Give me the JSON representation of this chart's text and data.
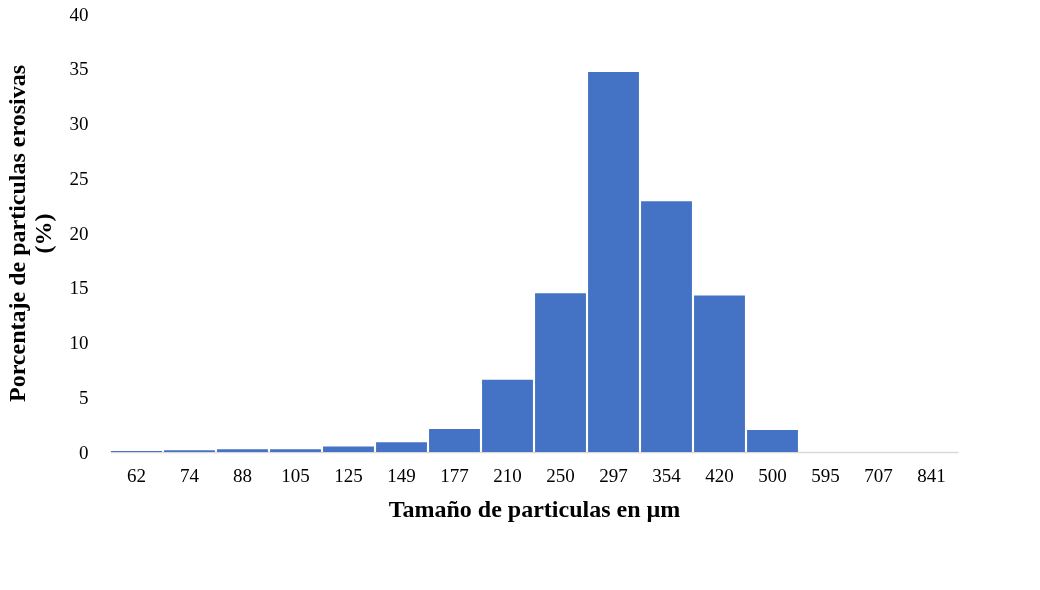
{
  "chart_data": {
    "type": "bar",
    "xlabel": "Tamaño de particulas en µm",
    "ylabel": "Porcentaje de particulas erosivas (%)",
    "categories": [
      "62",
      "74",
      "88",
      "105",
      "125",
      "149",
      "177",
      "210",
      "250",
      "297",
      "354",
      "420",
      "500",
      "595",
      "707",
      "841"
    ],
    "values": [
      0.1,
      0.15,
      0.25,
      0.25,
      0.5,
      0.9,
      2.1,
      6.6,
      14.5,
      34.7,
      22.9,
      14.3,
      2.0,
      0,
      0,
      0
    ],
    "color": "#4472c4",
    "ylim": [
      0,
      40
    ],
    "yticks": [
      0,
      5,
      10,
      15,
      20,
      25,
      30,
      35,
      40
    ],
    "grid": false
  }
}
